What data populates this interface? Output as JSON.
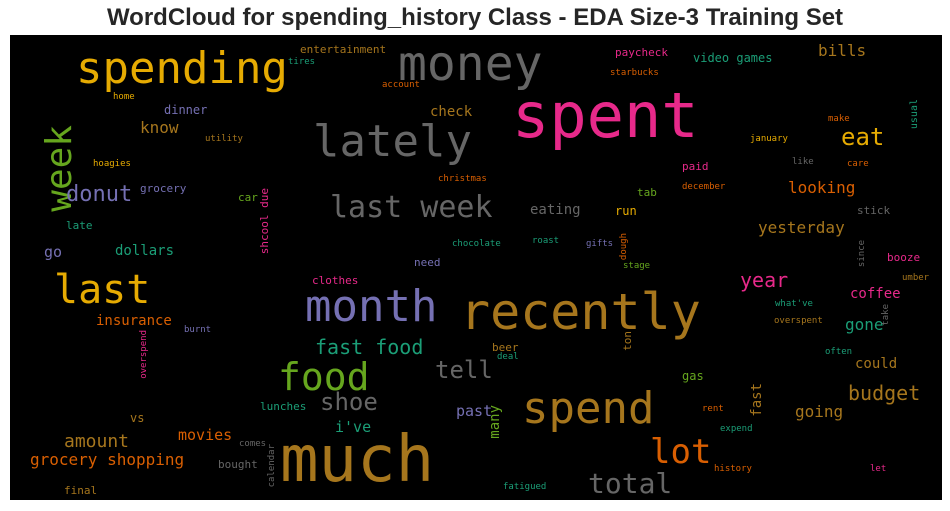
{
  "chart_data": {
    "type": "wordcloud",
    "title": "WordCloud for spending_history Class - EDA Size-3 Training Set",
    "background": "#000000",
    "words": [
      {
        "text": "spent",
        "color": "#e7298a"
      },
      {
        "text": "much",
        "color": "#a6761d"
      },
      {
        "text": "recently",
        "color": "#a6761d"
      },
      {
        "text": "money",
        "color": "#666666"
      },
      {
        "text": "month",
        "color": "#7570b3"
      },
      {
        "text": "lately",
        "color": "#666666"
      },
      {
        "text": "spending",
        "color": "#e6ab02"
      },
      {
        "text": "spend",
        "color": "#a6761d"
      },
      {
        "text": "last",
        "color": "#e6ab02"
      },
      {
        "text": "week",
        "color": "#66a61e"
      },
      {
        "text": "food",
        "color": "#66a61e"
      },
      {
        "text": "last week",
        "color": "#666666"
      },
      {
        "text": "lot",
        "color": "#d95f02"
      },
      {
        "text": "total",
        "color": "#666666"
      },
      {
        "text": "shoe",
        "color": "#666666"
      },
      {
        "text": "tell",
        "color": "#666666"
      },
      {
        "text": "donut",
        "color": "#7570b3"
      },
      {
        "text": "eat",
        "color": "#e6ab02"
      },
      {
        "text": "fast food",
        "color": "#1b9e77"
      },
      {
        "text": "budget",
        "color": "#a6761d"
      },
      {
        "text": "year",
        "color": "#e7298a"
      },
      {
        "text": "amount",
        "color": "#a6761d"
      },
      {
        "text": "grocery shopping",
        "color": "#d95f02"
      },
      {
        "text": "yesterday",
        "color": "#a6761d"
      },
      {
        "text": "looking",
        "color": "#d95f02"
      },
      {
        "text": "know",
        "color": "#a6761d"
      },
      {
        "text": "bills",
        "color": "#a6761d"
      },
      {
        "text": "movies",
        "color": "#d95f02"
      },
      {
        "text": "going",
        "color": "#a6761d"
      },
      {
        "text": "gone",
        "color": "#1b9e77"
      },
      {
        "text": "coffee",
        "color": "#e7298a"
      },
      {
        "text": "could",
        "color": "#a6761d"
      },
      {
        "text": "i've",
        "color": "#1b9e77"
      },
      {
        "text": "past",
        "color": "#7570b3"
      },
      {
        "text": "many",
        "color": "#66a61e"
      },
      {
        "text": "eating",
        "color": "#666666"
      },
      {
        "text": "check",
        "color": "#a6761d"
      },
      {
        "text": "dollars",
        "color": "#1b9e77"
      },
      {
        "text": "go",
        "color": "#7570b3"
      },
      {
        "text": "insurance",
        "color": "#d95f02"
      },
      {
        "text": "fast",
        "color": "#a6761d"
      },
      {
        "text": "video games",
        "color": "#1b9e77"
      },
      {
        "text": "entertainment",
        "color": "#a6761d"
      },
      {
        "text": "paycheck",
        "color": "#e7298a"
      },
      {
        "text": "dinner",
        "color": "#7570b3"
      },
      {
        "text": "grocery",
        "color": "#7570b3"
      },
      {
        "text": "car",
        "color": "#66a61e"
      },
      {
        "text": "shcool due",
        "color": "#e7298a"
      },
      {
        "text": "paid",
        "color": "#e7298a"
      },
      {
        "text": "tab",
        "color": "#66a61e"
      },
      {
        "text": "run",
        "color": "#e6ab02"
      },
      {
        "text": "clothes",
        "color": "#e7298a"
      },
      {
        "text": "need",
        "color": "#7570b3"
      },
      {
        "text": "gas",
        "color": "#66a61e"
      },
      {
        "text": "lunches",
        "color": "#1b9e77"
      },
      {
        "text": "vs",
        "color": "#a6761d"
      },
      {
        "text": "booze",
        "color": "#e7298a"
      },
      {
        "text": "stick",
        "color": "#666666"
      },
      {
        "text": "usual",
        "color": "#1b9e77"
      },
      {
        "text": "late",
        "color": "#1b9e77"
      },
      {
        "text": "final",
        "color": "#a6761d"
      },
      {
        "text": "bought",
        "color": "#666666"
      },
      {
        "text": "beer",
        "color": "#a6761d"
      },
      {
        "text": "ton",
        "color": "#a6761d"
      },
      {
        "text": "chocolate",
        "color": "#1b9e77"
      },
      {
        "text": "roast",
        "color": "#1b9e77"
      },
      {
        "text": "gifts",
        "color": "#7570b3"
      },
      {
        "text": "stage",
        "color": "#66a61e"
      },
      {
        "text": "dough",
        "color": "#d95f02"
      },
      {
        "text": "christmas",
        "color": "#d95f02"
      },
      {
        "text": "december",
        "color": "#d95f02"
      },
      {
        "text": "january",
        "color": "#e6ab02"
      },
      {
        "text": "like",
        "color": "#666666"
      },
      {
        "text": "care",
        "color": "#d95f02"
      },
      {
        "text": "make",
        "color": "#d95f02"
      },
      {
        "text": "since",
        "color": "#666666"
      },
      {
        "text": "umber",
        "color": "#a6761d"
      },
      {
        "text": "what've",
        "color": "#1b9e77"
      },
      {
        "text": "take",
        "color": "#666666"
      },
      {
        "text": "overspent",
        "color": "#a6761d"
      },
      {
        "text": "often",
        "color": "#1b9e77"
      },
      {
        "text": "rent",
        "color": "#d95f02"
      },
      {
        "text": "expend",
        "color": "#1b9e77"
      },
      {
        "text": "history",
        "color": "#d95f02"
      },
      {
        "text": "let",
        "color": "#e7298a"
      },
      {
        "text": "fatigued",
        "color": "#1b9e77"
      },
      {
        "text": "deal",
        "color": "#1b9e77"
      },
      {
        "text": "calendar",
        "color": "#666666"
      },
      {
        "text": "comes",
        "color": "#666666"
      },
      {
        "text": "burnt",
        "color": "#7570b3"
      },
      {
        "text": "overspend",
        "color": "#e7298a"
      },
      {
        "text": "hoagies",
        "color": "#e6ab02"
      },
      {
        "text": "utility",
        "color": "#a6761d"
      },
      {
        "text": "home",
        "color": "#e6ab02"
      },
      {
        "text": "tires",
        "color": "#1b9e77"
      },
      {
        "text": "account",
        "color": "#d95f02"
      },
      {
        "text": "starbucks",
        "color": "#d95f02"
      }
    ]
  }
}
